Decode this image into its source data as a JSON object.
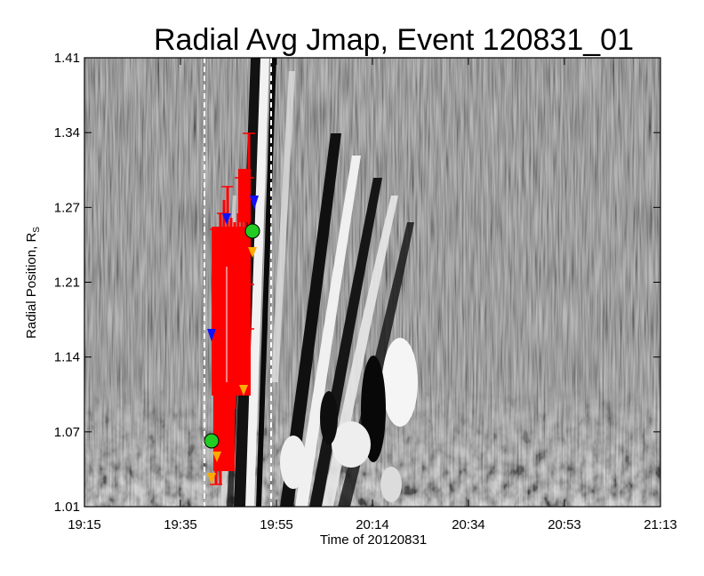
{
  "chart_data": {
    "type": "heatmap",
    "title": "Radial Avg Jmap, Event 120831_01",
    "xlabel": "Time of 20120831",
    "ylabel": "Radial Position, R",
    "ylabel_sub": "S",
    "colormap": "grayscale",
    "x_ticks": [
      "19:15",
      "19:35",
      "19:55",
      "20:14",
      "20:34",
      "20:53",
      "21:13"
    ],
    "y_ticks": [
      "1.01",
      "1.07",
      "1.14",
      "1.21",
      "1.27",
      "1.34",
      "1.41"
    ],
    "xlim": [
      "19:15",
      "21:13"
    ],
    "ylim": [
      1.01,
      1.41
    ],
    "vertical_markers": [
      {
        "time": "19:40",
        "style": "dashed",
        "color": "#ffffff"
      },
      {
        "time": "19:53",
        "style": "dashed",
        "color": "#ffffff"
      }
    ],
    "series": [
      {
        "marker": "error-bar",
        "color": "#ff0000",
        "points": [
          {
            "time": "19:42",
            "y": 1.04
          },
          {
            "time": "19:42",
            "y": 1.1
          },
          {
            "time": "19:43",
            "y": 1.18
          },
          {
            "time": "19:43",
            "y": 1.25
          },
          {
            "time": "19:44",
            "y": 1.06
          },
          {
            "time": "19:45",
            "y": 1.22
          },
          {
            "time": "19:46",
            "y": 1.12
          },
          {
            "time": "19:47",
            "y": 1.2
          },
          {
            "time": "19:48",
            "y": 1.15
          },
          {
            "time": "19:49",
            "y": 1.24
          },
          {
            "time": "19:50",
            "y": 1.29
          },
          {
            "time": "19:51",
            "y": 1.32
          }
        ]
      },
      {
        "marker": "triangle-down",
        "color": "#1010ff",
        "points": [
          {
            "time": "19:41",
            "y": 1.16
          },
          {
            "time": "19:44",
            "y": 1.26
          },
          {
            "time": "19:51",
            "y": 1.28
          }
        ]
      },
      {
        "marker": "triangle-up",
        "color": "#ffaa00",
        "points": [
          {
            "time": "19:41",
            "y": 1.04
          },
          {
            "time": "19:42",
            "y": 1.09
          },
          {
            "time": "19:51",
            "y": 1.23
          },
          {
            "time": "19:50",
            "y": 1.12
          }
        ]
      },
      {
        "marker": "circle",
        "color": "#22cc22",
        "points": [
          {
            "time": "19:41",
            "y": 1.06
          },
          {
            "time": "19:51",
            "y": 1.25
          }
        ]
      }
    ]
  }
}
